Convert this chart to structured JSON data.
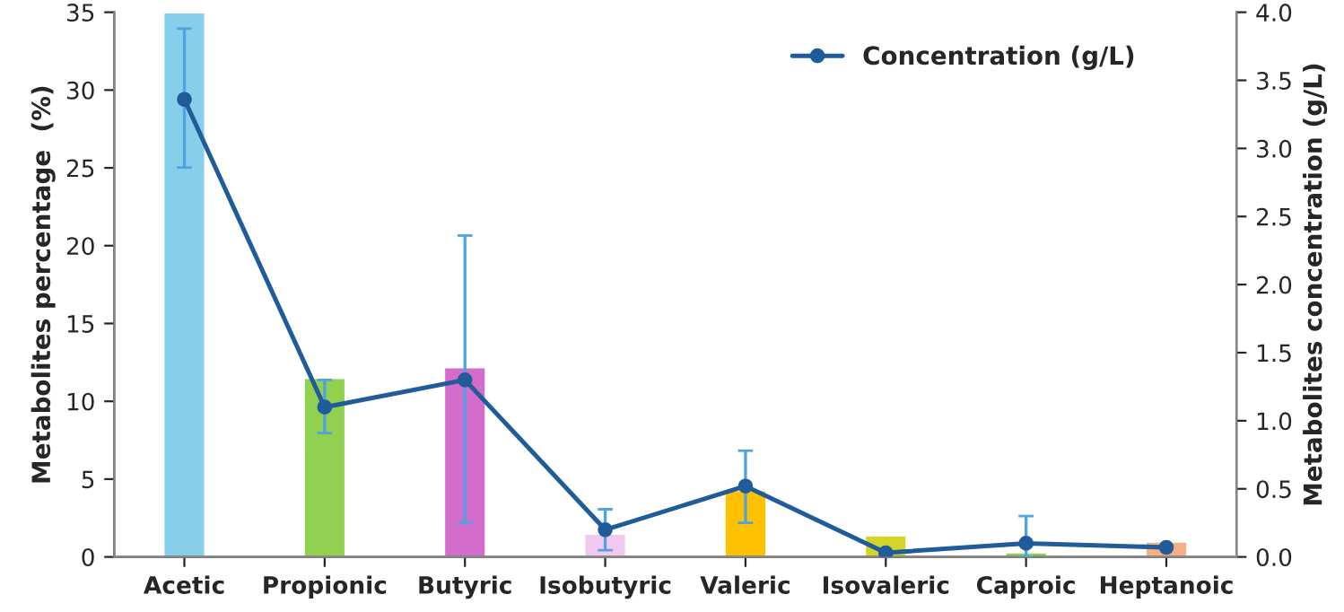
{
  "chart_data": {
    "type": "bar",
    "categories": [
      "Acetic",
      "Propionic",
      "Butyric",
      "Isobutyric",
      "Valeric",
      "Isovaleric",
      "Caproic",
      "Heptanoic"
    ],
    "ylabel": "Metabolites percentage  (%)",
    "y2label": "Metabolites concentration (g/L)",
    "ylim": [
      0,
      35
    ],
    "yticks": [
      0,
      5,
      10,
      15,
      20,
      25,
      30,
      35
    ],
    "y2lim": [
      0,
      4.0
    ],
    "y2ticks": [
      {
        "value": 0,
        "label": "0.0"
      },
      {
        "value": 0.5,
        "label": "0.5"
      },
      {
        "value": 1,
        "label": "1.0"
      },
      {
        "value": 1.5,
        "label": "1.5"
      },
      {
        "value": 2,
        "label": "2.0"
      },
      {
        "value": 2.5,
        "label": "2.5"
      },
      {
        "value": 3,
        "label": "3.0"
      },
      {
        "value": 3.5,
        "label": "3.5"
      },
      {
        "value": 4,
        "label": "4.0"
      }
    ],
    "series": [
      {
        "colors": [
          "#87ceeb",
          "#92d050",
          "#d36ccb",
          "#f2c9ee",
          "#ffc000",
          "#d4d42a",
          "#92d050",
          "#f4b183"
        ],
        "values": [
          35,
          11.5,
          12.2,
          1.5,
          4.3,
          1.4,
          0.3,
          1.0
        ]
      },
      {
        "type": "line",
        "axis": "y2",
        "name": "Concentration (g/L)",
        "color": "#1f5c99",
        "marker": "circle",
        "values": [
          3.36,
          1.1,
          1.3,
          0.2,
          0.52,
          0.03,
          0.1,
          0.07
        ],
        "errors": [
          [
            2.86,
            3.88
          ],
          [
            0.91,
            1.3
          ],
          [
            0.25,
            2.36
          ],
          [
            0.05,
            0.35
          ],
          [
            0.25,
            0.78
          ],
          null,
          [
            0.0,
            0.3
          ],
          null
        ]
      }
    ],
    "legend": "top right",
    "grid": false
  }
}
